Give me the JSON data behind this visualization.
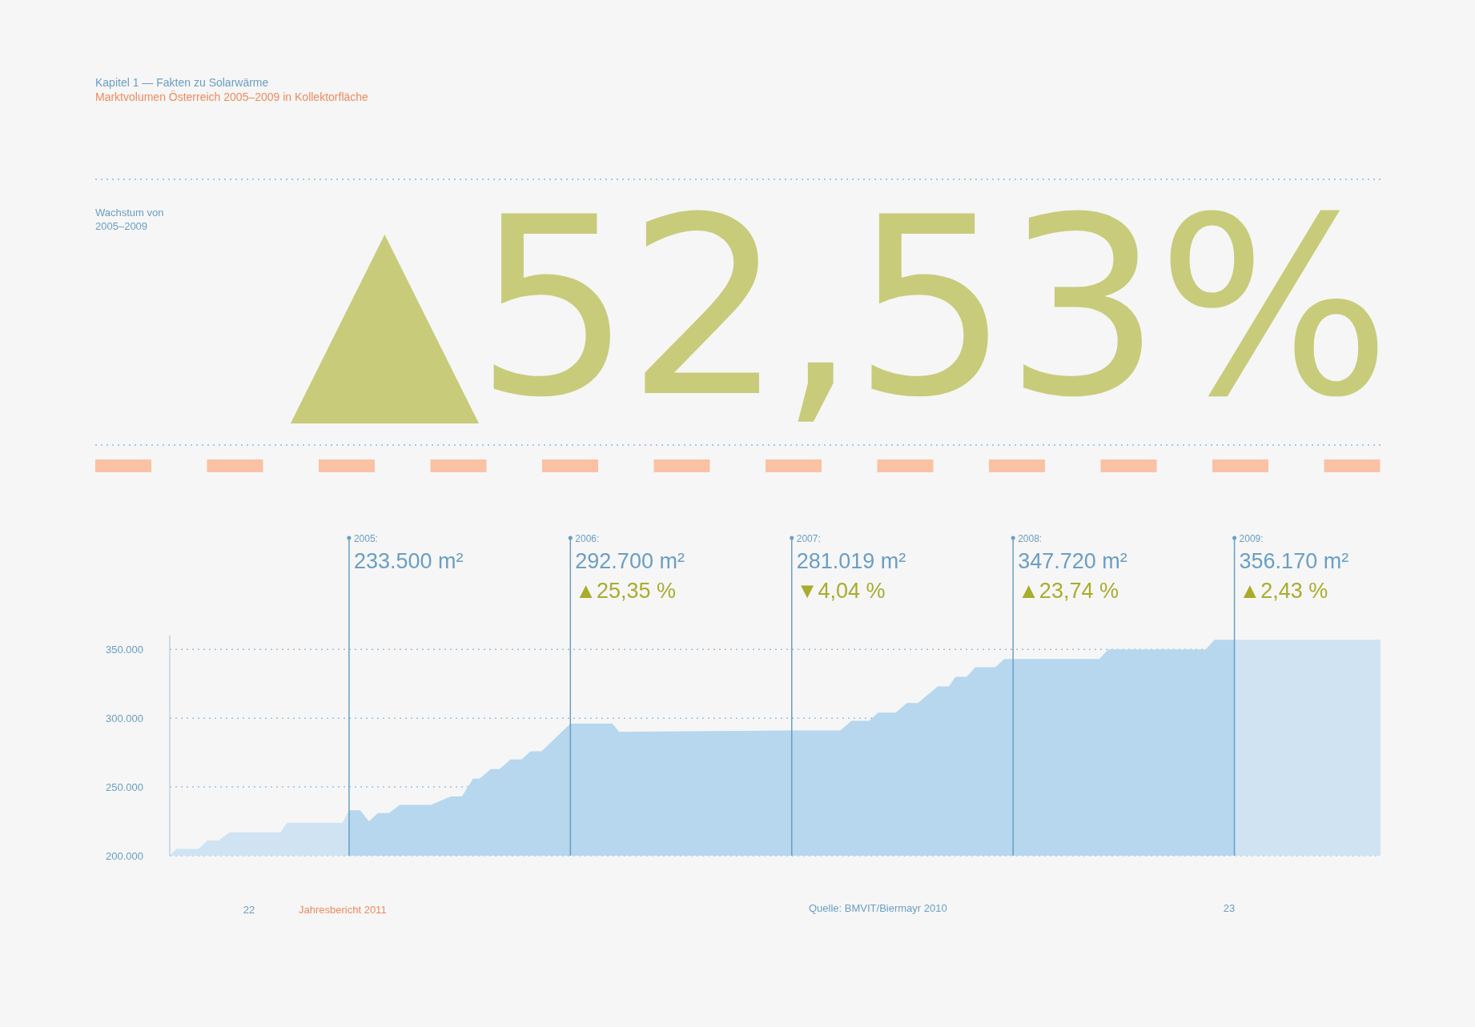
{
  "chart_data": {
    "type": "area",
    "title": "Marktvolumen Österreich 2005–2009 in Kollektorfläche",
    "subtitle": "Kapitel 1 — Fakten zu Solarwärme",
    "series": [
      {
        "color": "#d0e3f2",
        "x": [
          2004.19,
          2004.22,
          2004.32,
          2004.36,
          2004.41,
          2004.46,
          2004.69,
          2004.72,
          2004.97,
          2005.0
        ],
        "values": [
          200000,
          205000,
          205000,
          211000,
          211000,
          217000,
          217000,
          224000,
          224000,
          233000
        ]
      },
      {
        "color": "#b6d7ee",
        "x": [
          2005.0,
          2005.05,
          2005.09,
          2005.13,
          2005.18,
          2005.23,
          2005.37,
          2005.46,
          2005.51,
          2005.56,
          2005.59,
          2005.64,
          2005.68,
          2005.73,
          2005.78,
          2005.82,
          2005.87,
          2006.0,
          2006.19,
          2006.22,
          2007.0,
          2007.22,
          2007.27,
          2007.35,
          2007.39,
          2007.47,
          2007.52,
          2007.57,
          2007.66,
          2007.71,
          2007.74,
          2007.79,
          2007.83,
          2007.92,
          2007.96,
          2008.0,
          2008.39,
          2008.43,
          2008.87,
          2008.91,
          2009.0
        ],
        "values": [
          233000,
          233000,
          225000,
          231000,
          231000,
          237000,
          237000,
          243000,
          243000,
          256000,
          256000,
          263000,
          263000,
          270000,
          270000,
          276000,
          276000,
          296000,
          296000,
          290000,
          291000,
          291000,
          298000,
          298000,
          304000,
          304000,
          311000,
          311000,
          323000,
          323000,
          330000,
          330000,
          337000,
          337000,
          343000,
          343000,
          343000,
          350000,
          350000,
          357000,
          357000
        ]
      },
      {
        "color": "#d0e3f2",
        "x": [
          2009.0,
          2009.66
        ],
        "values": [
          357000,
          357000
        ]
      }
    ],
    "xlim": [
      2004.19,
      2009.66
    ],
    "ylim": [
      200000,
      360000
    ],
    "yticks": [
      {
        "value": 200000,
        "label": "200.000"
      },
      {
        "value": 250000,
        "label": "250.000"
      },
      {
        "value": 300000,
        "label": "300.000"
      },
      {
        "value": 350000,
        "label": "350.000"
      }
    ],
    "tick_labels": "y",
    "grid": "y",
    "ref_lines": [
      {
        "axis": "x",
        "value": 2005,
        "label": "2005:",
        "color": "#6a9ec4"
      },
      {
        "axis": "x",
        "value": 2006,
        "label": "2006:",
        "color": "#6a9ec4"
      },
      {
        "axis": "x",
        "value": 2007,
        "label": "2007:",
        "color": "#6a9ec4"
      },
      {
        "axis": "x",
        "value": 2008,
        "label": "2008:",
        "color": "#6a9ec4"
      },
      {
        "axis": "x",
        "value": 2009,
        "label": "2009:",
        "color": "#6a9ec4"
      }
    ],
    "annotations": [
      "Wachstum von 2005–2009",
      "▲52,53%",
      "22",
      "Jahresbericht 2011",
      "Quelle: BMVIT/Biermayr 2010",
      "23",
      {
        "text": "233.500 m²",
        "x": 2005
      },
      {
        "text": "292.700 m²",
        "x": 2006
      },
      {
        "text": "▲25,35 %",
        "x": 2006
      },
      {
        "text": "281.019 m²",
        "x": 2007
      },
      {
        "text": "▼4,04 %",
        "x": 2007
      },
      {
        "text": "347.720 m²",
        "x": 2008
      },
      {
        "text": "▲23,74 %",
        "x": 2008
      },
      {
        "text": "356.170 m²",
        "x": 2009
      },
      {
        "text": "▲2,43 %",
        "x": 2009
      }
    ]
  }
}
